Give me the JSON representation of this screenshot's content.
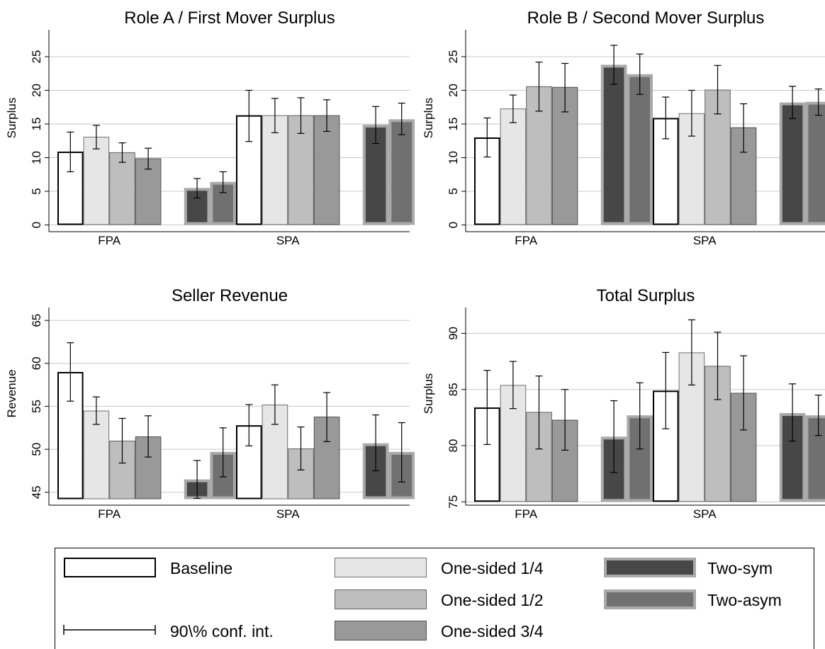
{
  "styles": {
    "Baseline": {
      "fill": "#ffffff",
      "stroke": "#000000",
      "sw": 2
    },
    "One-sided 1/4": {
      "fill": "#e6e6e6",
      "stroke": "#707070",
      "sw": 1
    },
    "One-sided 1/2": {
      "fill": "#bebebe",
      "stroke": "#606060",
      "sw": 1
    },
    "One-sided 3/4": {
      "fill": "#999999",
      "stroke": "#505050",
      "sw": 1
    },
    "Two-sym": {
      "fill": "#474747",
      "stroke": "#a9a9a9",
      "sw": 4
    },
    "Two-asym": {
      "fill": "#707070",
      "stroke": "#a9a9a9",
      "sw": 4
    }
  },
  "legend": {
    "items": [
      {
        "label": "Baseline",
        "series": "Baseline"
      },
      {
        "label": "One-sided 1/4",
        "series": "One-sided 1/4"
      },
      {
        "label": "One-sided 1/2",
        "series": "One-sided 1/2"
      },
      {
        "label": "One-sided 3/4",
        "series": "One-sided 3/4"
      },
      {
        "label": "Two-sym",
        "series": "Two-sym"
      },
      {
        "label": "Two-asym",
        "series": "Two-asym"
      }
    ],
    "ci_label": "90\\% conf. int."
  },
  "chart_data": [
    {
      "type": "bar",
      "title": "Role A / First Mover Surplus",
      "ylabel": "Surplus",
      "ylim": [
        -1,
        29
      ],
      "yticks": [
        0,
        5,
        10,
        15,
        20,
        25
      ],
      "grid": true,
      "categories": [
        "FPA",
        "SPA"
      ],
      "series": [
        {
          "name": "Baseline",
          "values": [
            10.9,
            16.3
          ],
          "ci_low": [
            7.9,
            12.4
          ],
          "ci_high": [
            13.8,
            20.0
          ]
        },
        {
          "name": "One-sided 1/4",
          "values": [
            13.1,
            16.3
          ],
          "ci_low": [
            11.3,
            13.7
          ],
          "ci_high": [
            14.8,
            18.8
          ]
        },
        {
          "name": "One-sided 1/2",
          "values": [
            10.8,
            16.3
          ],
          "ci_low": [
            9.3,
            13.6
          ],
          "ci_high": [
            12.2,
            18.9
          ]
        },
        {
          "name": "One-sided 3/4",
          "values": [
            9.9,
            16.3
          ],
          "ci_low": [
            8.3,
            13.9
          ],
          "ci_high": [
            11.4,
            18.6
          ]
        },
        {
          "name": "Two-sym",
          "values": [
            5.5,
            14.9
          ],
          "ci_low": [
            4.0,
            12.1
          ],
          "ci_high": [
            6.9,
            17.6
          ]
        },
        {
          "name": "Two-asym",
          "values": [
            6.4,
            15.7
          ],
          "ci_low": [
            4.8,
            13.4
          ],
          "ci_high": [
            7.9,
            18.1
          ]
        }
      ]
    },
    {
      "type": "bar",
      "title": "Role B / Second Mover Surplus",
      "ylabel": "Surplus",
      "ylim": [
        -1,
        29
      ],
      "yticks": [
        0,
        5,
        10,
        15,
        20,
        25
      ],
      "grid": true,
      "categories": [
        "FPA",
        "SPA"
      ],
      "series": [
        {
          "name": "Baseline",
          "values": [
            13.0,
            15.9
          ],
          "ci_low": [
            10.1,
            12.8
          ],
          "ci_high": [
            15.9,
            19.0
          ]
        },
        {
          "name": "One-sided 1/4",
          "values": [
            17.3,
            16.6
          ],
          "ci_low": [
            15.2,
            13.2
          ],
          "ci_high": [
            19.3,
            20.0
          ]
        },
        {
          "name": "One-sided 1/2",
          "values": [
            20.6,
            20.1
          ],
          "ci_low": [
            16.9,
            16.5
          ],
          "ci_high": [
            24.2,
            23.7
          ]
        },
        {
          "name": "One-sided 3/4",
          "values": [
            20.5,
            14.5
          ],
          "ci_low": [
            16.8,
            10.8
          ],
          "ci_high": [
            24.0,
            18.0
          ]
        },
        {
          "name": "Two-sym",
          "values": [
            23.8,
            18.2
          ],
          "ci_low": [
            20.9,
            15.8
          ],
          "ci_high": [
            26.7,
            20.6
          ]
        },
        {
          "name": "Two-asym",
          "values": [
            22.4,
            18.3
          ],
          "ci_low": [
            19.4,
            16.3
          ],
          "ci_high": [
            25.4,
            20.2
          ]
        }
      ]
    },
    {
      "type": "bar",
      "title": "Seller Revenue",
      "ylabel": "Revenue",
      "ylim": [
        43.5,
        66.5
      ],
      "baseline": 44.2,
      "yticks": [
        45,
        50,
        55,
        60,
        65
      ],
      "grid": true,
      "categories": [
        "FPA",
        "SPA"
      ],
      "series": [
        {
          "name": "Baseline",
          "values": [
            59.0,
            52.8
          ],
          "ci_low": [
            55.6,
            50.4
          ],
          "ci_high": [
            62.4,
            55.2
          ]
        },
        {
          "name": "One-sided 1/4",
          "values": [
            54.5,
            55.2
          ],
          "ci_low": [
            52.9,
            52.9
          ],
          "ci_high": [
            56.1,
            57.5
          ]
        },
        {
          "name": "One-sided 1/2",
          "values": [
            51.0,
            50.1
          ],
          "ci_low": [
            48.4,
            47.6
          ],
          "ci_high": [
            53.6,
            52.6
          ]
        },
        {
          "name": "One-sided 3/4",
          "values": [
            51.5,
            53.8
          ],
          "ci_low": [
            49.1,
            50.9
          ],
          "ci_high": [
            53.9,
            56.6
          ]
        },
        {
          "name": "Two-sym",
          "values": [
            46.5,
            50.7
          ],
          "ci_low": [
            44.3,
            47.5
          ],
          "ci_high": [
            48.7,
            54.0
          ]
        },
        {
          "name": "Two-asym",
          "values": [
            49.7,
            49.7
          ],
          "ci_low": [
            46.8,
            46.2
          ],
          "ci_high": [
            52.5,
            53.1
          ]
        }
      ]
    },
    {
      "type": "bar",
      "title": "Total Surplus",
      "ylabel": "Surplus",
      "ylim": [
        74.7,
        92.3
      ],
      "baseline": 75.0,
      "yticks": [
        75,
        80,
        85,
        90
      ],
      "grid": true,
      "categories": [
        "FPA",
        "SPA"
      ],
      "series": [
        {
          "name": "Baseline",
          "values": [
            83.4,
            84.9
          ],
          "ci_low": [
            80.1,
            81.5
          ],
          "ci_high": [
            86.7,
            88.3
          ]
        },
        {
          "name": "One-sided 1/4",
          "values": [
            85.4,
            88.3
          ],
          "ci_low": [
            83.3,
            85.4
          ],
          "ci_high": [
            87.5,
            91.2
          ]
        },
        {
          "name": "One-sided 1/2",
          "values": [
            83.0,
            87.1
          ],
          "ci_low": [
            79.7,
            84.1
          ],
          "ci_high": [
            86.2,
            90.1
          ]
        },
        {
          "name": "One-sided 3/4",
          "values": [
            82.3,
            84.7
          ],
          "ci_low": [
            79.6,
            81.4
          ],
          "ci_high": [
            85.0,
            88.0
          ]
        },
        {
          "name": "Two-sym",
          "values": [
            80.8,
            82.9
          ],
          "ci_low": [
            77.6,
            80.4
          ],
          "ci_high": [
            84.0,
            85.5
          ]
        },
        {
          "name": "Two-asym",
          "values": [
            82.7,
            82.7
          ],
          "ci_low": [
            79.7,
            80.9
          ],
          "ci_high": [
            85.6,
            84.5
          ]
        }
      ]
    }
  ]
}
